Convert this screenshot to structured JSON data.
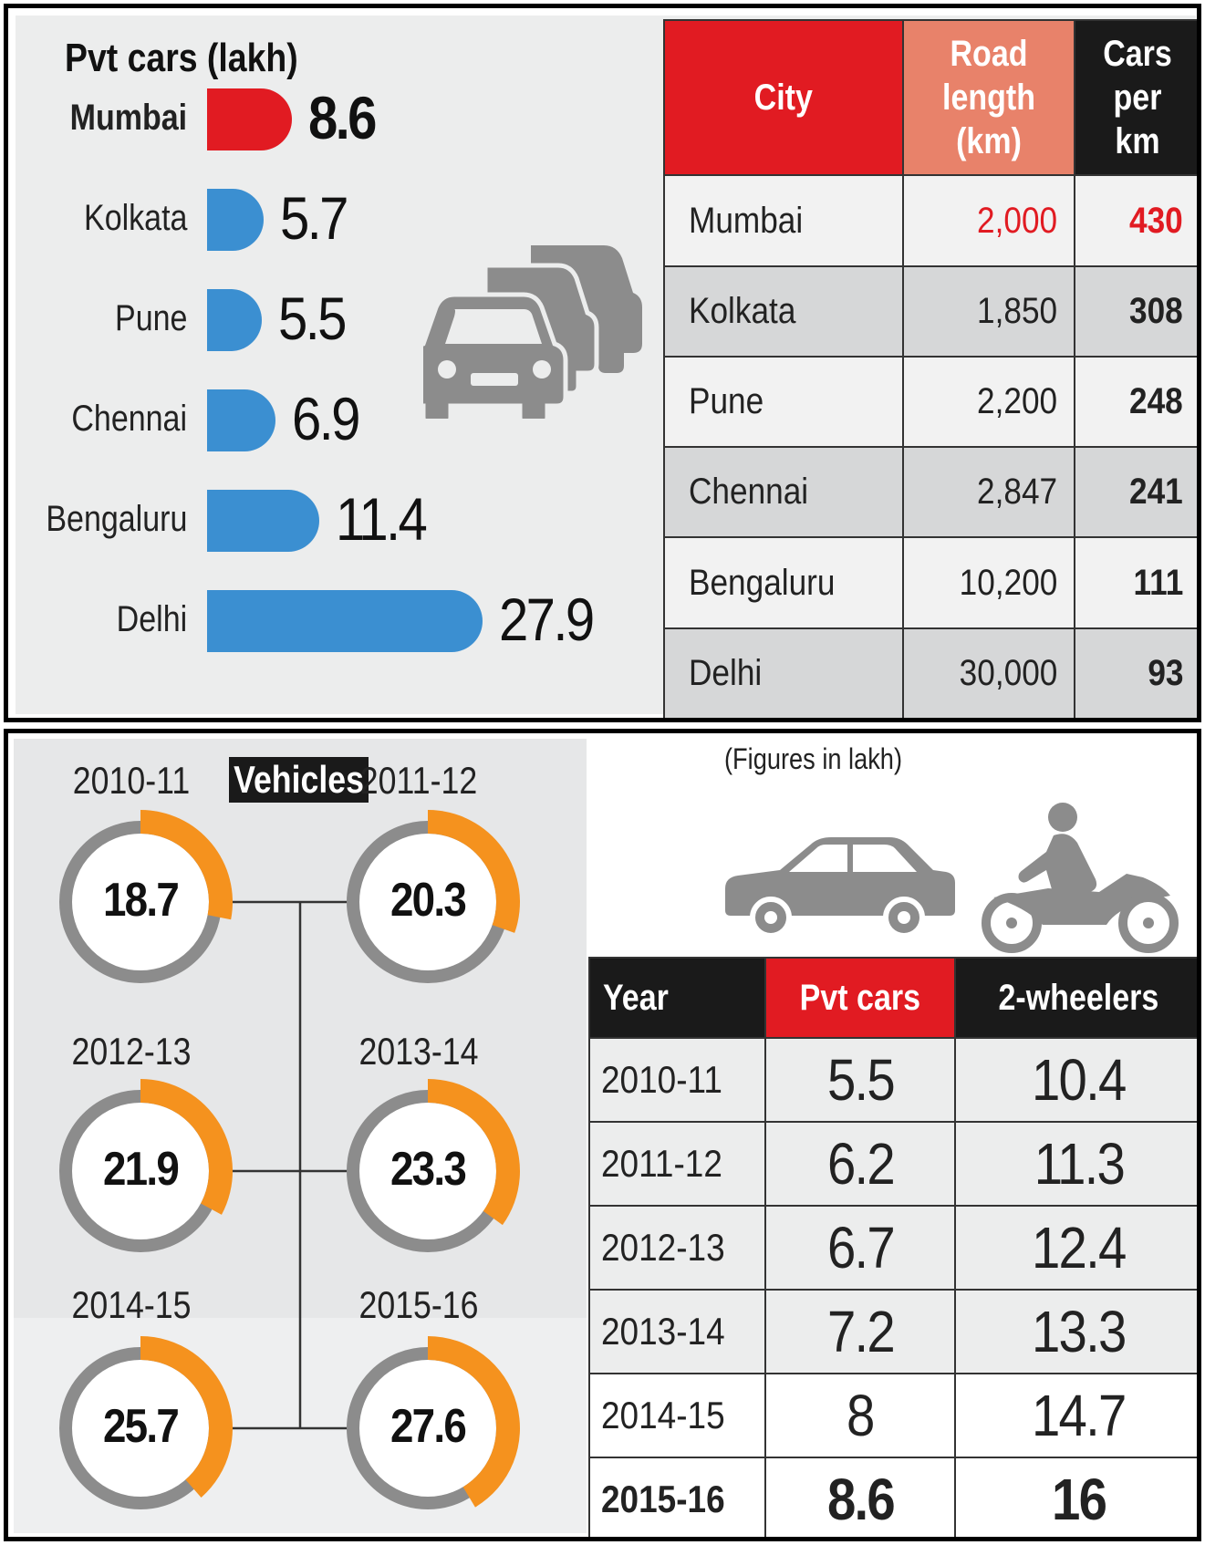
{
  "colors": {
    "red": "#e11b22",
    "blue": "#3b8fd1",
    "salmon": "#e8826a",
    "black": "#1a1a1a",
    "orange": "#f5921e",
    "grey": "#8c8c8c",
    "panel_bg": "#eceded"
  },
  "top": {
    "title": "Pvt cars (lakh)",
    "table_headers": {
      "city": "City",
      "road": "Road length (km)",
      "cars": "Cars per km"
    },
    "icon": "cars-traffic-icon"
  },
  "bottom": {
    "title": "Vehicles",
    "note": "(Figures in lakh)",
    "table_headers": {
      "year": "Year",
      "cars": "Pvt cars",
      "two": "2-wheelers"
    },
    "icons": [
      "car-icon",
      "motorcycle-rider-icon"
    ]
  },
  "chart_data": [
    {
      "type": "bar",
      "title": "Pvt cars (lakh)",
      "categories": [
        "Mumbai",
        "Kolkata",
        "Pune",
        "Chennai",
        "Bengaluru",
        "Delhi"
      ],
      "values": [
        8.6,
        5.7,
        5.5,
        6.9,
        11.4,
        27.9
      ],
      "value_labels": [
        "8.6",
        "5.7",
        "5.5",
        "6.9",
        "11.4",
        "27.9"
      ],
      "highlight": "Mumbai"
    },
    {
      "type": "table",
      "columns": [
        "City",
        "Road length (km)",
        "Cars per km"
      ],
      "rows": [
        [
          "Mumbai",
          "2,000",
          "430"
        ],
        [
          "Kolkata",
          "1,850",
          "308"
        ],
        [
          "Pune",
          "2,200",
          "248"
        ],
        [
          "Chennai",
          "2,847",
          "241"
        ],
        [
          "Bengaluru",
          "10,200",
          "111"
        ],
        [
          "Delhi",
          "30,000",
          "93"
        ]
      ]
    },
    {
      "type": "pie",
      "title": "Vehicles",
      "years": [
        "2010-11",
        "2011-12",
        "2012-13",
        "2013-14",
        "2014-15",
        "2015-16"
      ],
      "values": [
        18.7,
        20.3,
        21.9,
        23.3,
        25.7,
        27.6
      ],
      "value_labels": [
        "18.7",
        "20.3",
        "21.9",
        "23.3",
        "25.7",
        "27.6"
      ]
    },
    {
      "type": "table",
      "columns": [
        "Year",
        "Pvt cars",
        "2-wheelers"
      ],
      "rows": [
        [
          "2010-11",
          "5.5",
          "10.4"
        ],
        [
          "2011-12",
          "6.2",
          "11.3"
        ],
        [
          "2012-13",
          "6.7",
          "12.4"
        ],
        [
          "2013-14",
          "7.2",
          "13.3"
        ],
        [
          "2014-15",
          "8",
          "14.7"
        ],
        [
          "2015-16",
          "8.6",
          "16"
        ]
      ],
      "bold_row": "2015-16"
    }
  ]
}
